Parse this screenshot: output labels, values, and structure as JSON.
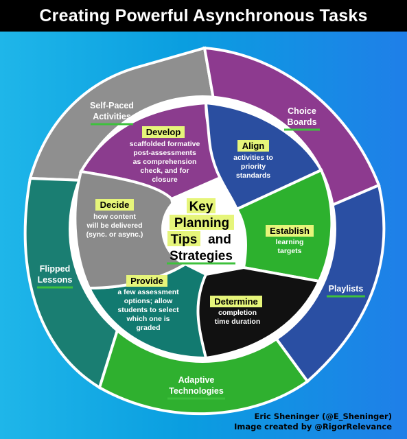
{
  "title": "Creating Powerful Asynchronous Tasks",
  "center": {
    "lines": [
      "Key",
      "Planning",
      "Tips",
      "and",
      "Strategies"
    ]
  },
  "outer_ring": [
    {
      "label": "Self-Paced Activities",
      "lines": [
        "Self-Paced",
        "Activities"
      ],
      "color": "#8f8f8f"
    },
    {
      "label": "Choice Boards",
      "lines": [
        "Choice",
        "Boards"
      ],
      "color": "#8d3a8f"
    },
    {
      "label": "Playlists",
      "lines": [
        "Playlists"
      ],
      "color": "#2a4fa3"
    },
    {
      "label": "Adaptive Technologies",
      "lines": [
        "Adaptive",
        "Technologies"
      ],
      "color": "#2fb02f"
    },
    {
      "label": "Flipped Lessons",
      "lines": [
        "Flipped",
        "Lessons"
      ],
      "color": "#1a7e72"
    }
  ],
  "inner_ring": [
    {
      "keyword": "Develop",
      "lines": [
        "scaffolded formative",
        "post-assessments",
        "as comprehension",
        "check, and for",
        "closure"
      ],
      "color": "#8b3c8e"
    },
    {
      "keyword": "Align",
      "lines": [
        "activities to",
        "priority",
        "standards"
      ],
      "color": "#2a4ea0"
    },
    {
      "keyword": "Establish",
      "lines": [
        "learning",
        "targets"
      ],
      "color": "#2db12e"
    },
    {
      "keyword": "Determine",
      "lines": [
        "completion",
        "time duration"
      ],
      "color": "#111111"
    },
    {
      "keyword": "Provide",
      "lines": [
        "a few assessment",
        "options; allow",
        "students to select",
        "which one is",
        "graded"
      ],
      "color": "#127a70"
    },
    {
      "keyword": "Decide",
      "lines": [
        "how content",
        "will be delivered",
        "(sync. or async.)"
      ],
      "color": "#8a8a8a"
    }
  ],
  "credit": {
    "author": "Eric Sheninger (@E_Sheninger)",
    "created_by": "Image created by @RigorRelevance"
  },
  "colors": {
    "highlight": "#e6f57a",
    "underline": "#3ec13c",
    "background": "#0da3e2"
  }
}
